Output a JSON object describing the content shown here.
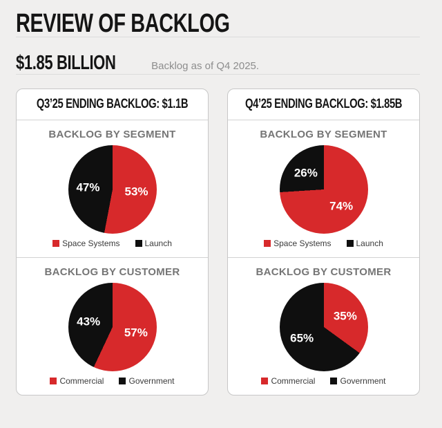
{
  "page": {
    "title": "REVIEW OF BACKLOG",
    "headline": {
      "value": "$1.85 BILLION",
      "caption": "Backlog as of Q4 2025."
    }
  },
  "colors": {
    "brand_red": "#d7292b",
    "brand_black": "#0f0f0f",
    "chart_title_gray": "#757575"
  },
  "chart_data": [
    {
      "type": "pie",
      "group": "Q3'25 ENDING BACKLOG: $1.1B",
      "title": "BACKLOG BY SEGMENT",
      "labels": [
        "Space Systems",
        "Launch"
      ],
      "values": [
        53,
        47
      ],
      "value_labels": [
        "53%",
        "47%"
      ],
      "colors": [
        "#d7292b",
        "#0f0f0f"
      ],
      "legend_position": "bottom"
    },
    {
      "type": "pie",
      "group": "Q3'25 ENDING BACKLOG: $1.1B",
      "title": "BACKLOG BY CUSTOMER",
      "labels": [
        "Commercial",
        "Government"
      ],
      "values": [
        57,
        43
      ],
      "value_labels": [
        "57%",
        "43%"
      ],
      "colors": [
        "#d7292b",
        "#0f0f0f"
      ],
      "legend_position": "bottom"
    },
    {
      "type": "pie",
      "group": "Q4'25 ENDING BACKLOG: $1.85B",
      "title": "BACKLOG BY SEGMENT",
      "labels": [
        "Space Systems",
        "Launch"
      ],
      "values": [
        74,
        26
      ],
      "value_labels": [
        "74%",
        "26%"
      ],
      "colors": [
        "#d7292b",
        "#0f0f0f"
      ],
      "legend_position": "bottom"
    },
    {
      "type": "pie",
      "group": "Q4'25 ENDING BACKLOG: $1.85B",
      "title": "BACKLOG BY CUSTOMER",
      "labels": [
        "Commercial",
        "Government"
      ],
      "values": [
        35,
        65
      ],
      "value_labels": [
        "35%",
        "65%"
      ],
      "colors": [
        "#d7292b",
        "#0f0f0f"
      ],
      "legend_position": "bottom"
    }
  ],
  "panels": [
    {
      "header": "Q3’25 ENDING BACKLOG: $1.1B",
      "charts": [
        0,
        1
      ]
    },
    {
      "header": "Q4’25 ENDING BACKLOG: $1.85B",
      "charts": [
        2,
        3
      ]
    }
  ]
}
